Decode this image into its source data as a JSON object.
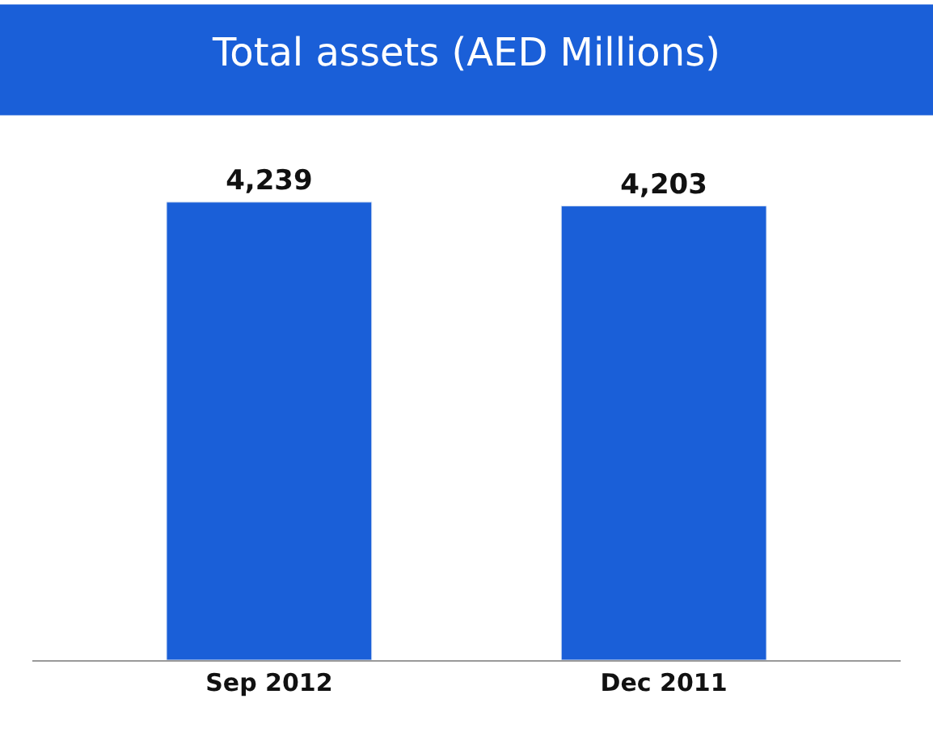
{
  "chart_data": {
    "type": "bar",
    "title": "Total assets (AED Millions)",
    "categories": [
      "Sep 2012",
      "Dec 2011"
    ],
    "values": [
      4239,
      4203
    ],
    "value_labels": [
      "4,239",
      "4,203"
    ],
    "color": "#1a5fd8",
    "legend": false
  }
}
